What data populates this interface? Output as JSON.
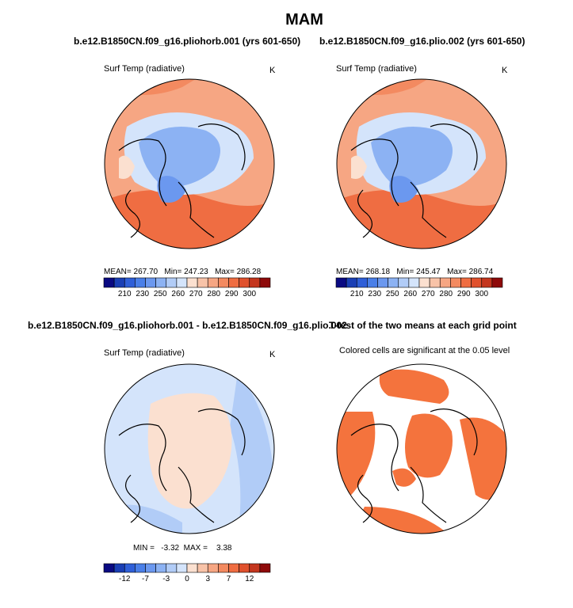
{
  "figure": {
    "title": "MAM",
    "colors": {
      "sig": "#f4733d",
      "outline": "#000000",
      "land": "#000000"
    }
  },
  "panels": [
    {
      "title": "b.e12.B1850CN.f09_g16.pliohorb.001 (yrs 601-650)",
      "var_label": "Surf Temp (radiative)",
      "units": "K",
      "stats": "MEAN= 267.70   Min= 247.23   Max= 286.28"
    },
    {
      "title": "b.e12.B1850CN.f09_g16.plio.002 (yrs 601-650)",
      "var_label": "Surf Temp (radiative)",
      "units": "K",
      "stats": "MEAN= 268.18   Min= 245.47   Max= 286.74"
    },
    {
      "title": "b.e12.B1850CN.f09_g16.pliohorb.001 - b.e12.B1850CN.f09_g16.plio.002",
      "var_label": "Surf Temp (radiative)",
      "units": "K",
      "stats": "MIN =   -3.32  MAX =    3.38"
    },
    {
      "title": "T-test of the two means at each grid point",
      "var_label": "Colored cells are significant at the 0.05 level"
    }
  ],
  "chart_data": [
    {
      "type": "heatmap",
      "projection": "north-polar-stereographic",
      "title": "b.e12.B1850CN.f09_g16.pliohorb.001 (yrs 601-650)",
      "variable": "Surf Temp (radiative)",
      "units": "K",
      "mean": 267.7,
      "min": 247.23,
      "max": 286.28,
      "colorbar": {
        "ticks": [
          210,
          230,
          250,
          260,
          270,
          280,
          290,
          300
        ],
        "colors": [
          "#0a0a82",
          "#1a3fb5",
          "#2f5fd8",
          "#4a7fe8",
          "#6b98ef",
          "#8cb2f3",
          "#b1ccf7",
          "#d4e4fb",
          "#fbe0d0",
          "#f8c3a8",
          "#f6a683",
          "#f38a60",
          "#ef6d42",
          "#e0512d",
          "#c4361e",
          "#8e0a0a"
        ]
      }
    },
    {
      "type": "heatmap",
      "projection": "north-polar-stereographic",
      "title": "b.e12.B1850CN.f09_g16.plio.002 (yrs 601-650)",
      "variable": "Surf Temp (radiative)",
      "units": "K",
      "mean": 268.18,
      "min": 245.47,
      "max": 286.74,
      "colorbar": {
        "ticks": [
          210,
          230,
          250,
          260,
          270,
          280,
          290,
          300
        ],
        "colors": [
          "#0a0a82",
          "#1a3fb5",
          "#2f5fd8",
          "#4a7fe8",
          "#6b98ef",
          "#8cb2f3",
          "#b1ccf7",
          "#d4e4fb",
          "#fbe0d0",
          "#f8c3a8",
          "#f6a683",
          "#f38a60",
          "#ef6d42",
          "#e0512d",
          "#c4361e",
          "#8e0a0a"
        ]
      }
    },
    {
      "type": "heatmap",
      "projection": "north-polar-stereographic",
      "title": "b.e12.B1850CN.f09_g16.pliohorb.001 - b.e12.B1850CN.f09_g16.plio.002",
      "variable": "Surf Temp (radiative)",
      "units": "K",
      "min": -3.32,
      "max": 3.38,
      "colorbar": {
        "ticks": [
          -12,
          -7,
          -3,
          0,
          3,
          7,
          12
        ],
        "colors": [
          "#0a0a82",
          "#1a3fb5",
          "#2f5fd8",
          "#4a7fe8",
          "#6b98ef",
          "#8cb2f3",
          "#b1ccf7",
          "#d4e4fb",
          "#fbe0d0",
          "#f8c3a8",
          "#f6a683",
          "#f38a60",
          "#ef6d42",
          "#e0512d",
          "#c4361e",
          "#8e0a0a"
        ]
      }
    },
    {
      "type": "heatmap",
      "projection": "north-polar-stereographic",
      "title": "T-test of the two means at each grid point",
      "note": "Colored cells are significant at the 0.05 level",
      "significance_level": 0.05
    }
  ]
}
